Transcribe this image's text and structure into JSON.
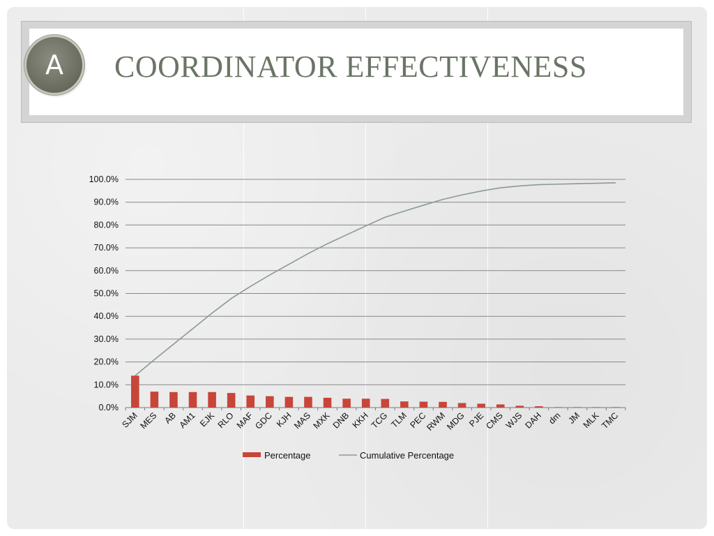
{
  "slide": {
    "badge_letter": "A",
    "title": "COORDINATOR EFFECTIVENESS"
  },
  "colors": {
    "bar": "#c8453a",
    "line": "#8a9a8e",
    "grid": "#888888",
    "axis_text": "#111111",
    "title": "#6a7566"
  },
  "chart_data": {
    "type": "bar",
    "categories": [
      "SJM",
      "MES",
      "AB",
      "AM1",
      "EJK",
      "RLO",
      "MAF",
      "GDC",
      "KJH",
      "MAS",
      "MXK",
      "DNB",
      "KKH",
      "TCG",
      "TLM",
      "PEC",
      "RWM",
      "MDG",
      "PJE",
      "CMS",
      "WJS",
      "DAH",
      "dm",
      "JM",
      "MLK",
      "TMC"
    ],
    "series": [
      {
        "name": "Percentage",
        "type": "bar",
        "values": [
          14.0,
          7.0,
          6.8,
          6.8,
          6.8,
          6.4,
          5.3,
          5.0,
          4.7,
          4.7,
          4.3,
          3.9,
          3.9,
          3.8,
          2.7,
          2.6,
          2.5,
          2.0,
          1.7,
          1.4,
          0.8,
          0.6,
          0.2,
          0.2,
          0.2,
          0.2
        ]
      },
      {
        "name": "Cumulative Percentage",
        "type": "line",
        "values": [
          14.0,
          21.0,
          27.8,
          34.6,
          41.4,
          47.8,
          53.1,
          58.1,
          62.8,
          67.5,
          71.8,
          75.7,
          79.6,
          83.4,
          86.1,
          88.7,
          91.2,
          93.2,
          94.9,
          96.3,
          97.1,
          97.7,
          97.9,
          98.1,
          98.3,
          98.5
        ]
      }
    ],
    "y_ticks": [
      "0.0%",
      "10.0%",
      "20.0%",
      "30.0%",
      "40.0%",
      "50.0%",
      "60.0%",
      "70.0%",
      "80.0%",
      "90.0%",
      "100.0%"
    ],
    "ylim": [
      0,
      100
    ],
    "grid": true,
    "legend": {
      "position": "bottom",
      "entries": [
        "Percentage",
        "Cumulative Percentage"
      ]
    }
  }
}
